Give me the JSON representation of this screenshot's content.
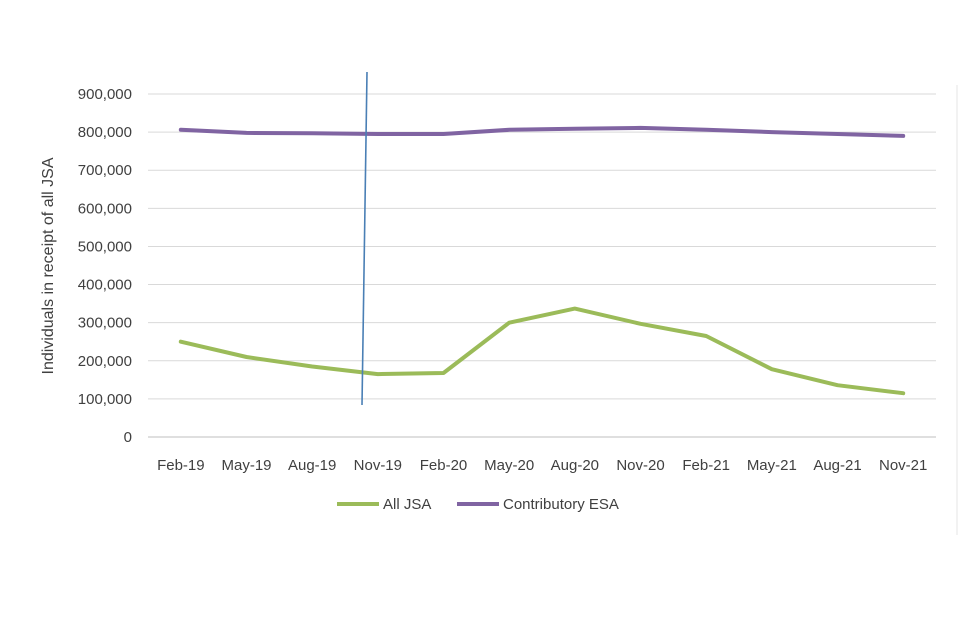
{
  "chart_data": {
    "type": "line",
    "categories": [
      "Feb-19",
      "May-19",
      "Aug-19",
      "Nov-19",
      "Feb-20",
      "May-20",
      "Aug-20",
      "Nov-20",
      "Feb-21",
      "May-21",
      "Aug-21",
      "Nov-21"
    ],
    "series": [
      {
        "name": "All JSA",
        "color": "#9bbb59",
        "values": [
          250000,
          210000,
          185000,
          165000,
          168000,
          300000,
          337000,
          297000,
          265000,
          178000,
          136000,
          115000
        ]
      },
      {
        "name": "Contributory ESA",
        "color": "#8064a2",
        "values": [
          806000,
          798000,
          797000,
          795000,
          795000,
          806000,
          809000,
          811000,
          806000,
          800000,
          795000,
          790000
        ]
      }
    ],
    "title": "",
    "xlabel": "",
    "ylabel": "Individuals in receipt of all JSA",
    "ylim": [
      0,
      900000
    ],
    "yticks": [
      "0",
      "100,000",
      "200,000",
      "300,000",
      "400,000",
      "500,000",
      "600,000",
      "700,000",
      "800,000",
      "900,000"
    ],
    "grid": true,
    "legend_position": "bottom",
    "marker_line_color": "#4a7fb5"
  }
}
